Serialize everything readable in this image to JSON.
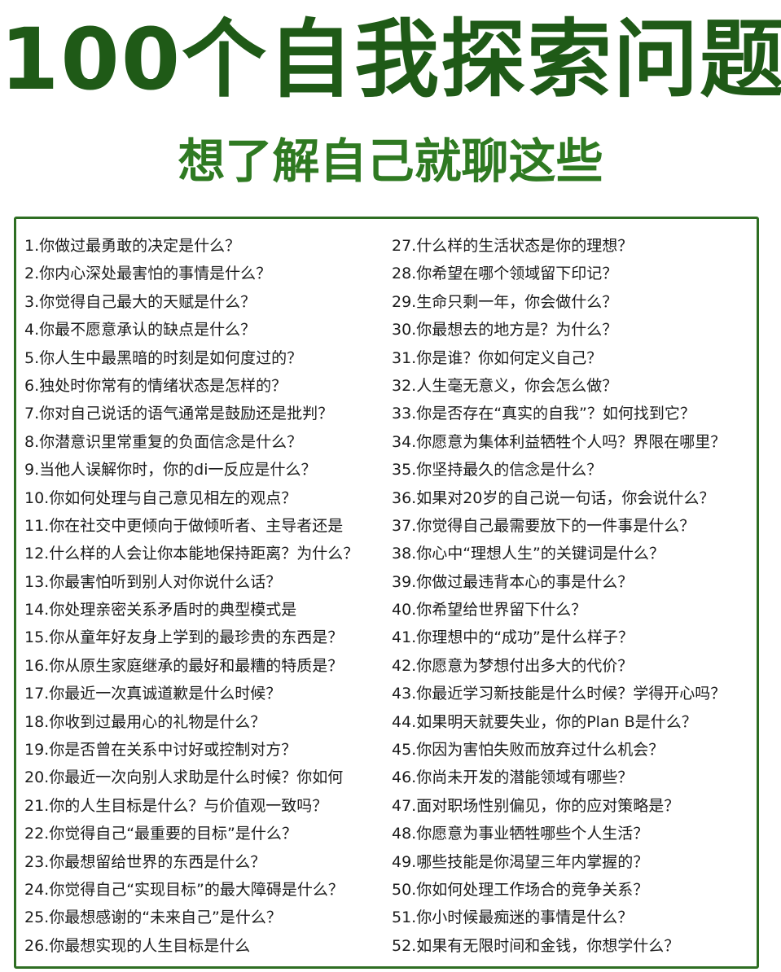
{
  "title": "100个自我探索问题",
  "subtitle": "想了解自己就聊这些",
  "questions_left": [
    "1.你做过最勇敢的决定是什么？",
    "2.你内心深处最害怕的事情是什么？",
    "3.你觉得自己最大的天赋是什么？",
    "4.你最不愿意承认的缺点是什么？",
    "5.你人生中最黑暗的时刻是如何度过的？",
    "6.独处时你常有的情绪状态是怎样的？",
    "7.你对自己说话的语气通常是鼓励还是批判？",
    "8.你潜意识里常重复的负面信念是什么？",
    "9.当他人误解你时，你的di一反应是什么？",
    "10.你如何处理与自己意见相左的观点？",
    "11.你在社交中更倾向于做倾听者、主导者还是",
    "12.什么样的人会让你本能地保持距离？为什么？",
    "13.你最害怕听到别人对你说什么话？",
    "14.你处理亲密关系矛盾时的典型模式是",
    "15.你从童年好友身上学到的最珍贵的东西是？",
    "16.你从原生家庭继承的最好和最糟的特质是？",
    "17.你最近一次真诚道歉是什么时候？",
    "18.你收到过最用心的礼物是什么？",
    "19.你是否曾在关系中讨好或控制对方？",
    "20.你最近一次向别人求助是什么时候？你如何",
    "21.你的人生目标是什么？与价值观一致吗？",
    "22.你觉得自己“最重要的目标”是什么？",
    "23.你最想留给世界的东西是什么？",
    "24.你觉得自己“实现目标”的最大障碍是什么？",
    "25.你最想感谢的“未来自己”是什么？",
    "26.你最想实现的人生目标是什么"
  ],
  "questions_right": [
    "27.什么样的生活状态是你的理想？",
    "28.你希望在哪个领域留下印记？",
    "29.生命只剩一年，你会做什么？",
    "30.你最想去的地方是？为什么？",
    "31.你是谁？你如何定义自己？",
    "32.人生毫无意义，你会怎么做？",
    "33.你是否存在“真实的自我”？如何找到它？",
    "34.你愿意为集体利益牺牲个人吗？界限在哪里？",
    "35.你坚持最久的信念是什么？",
    "36.如果对20岁的自己说一句话，你会说什么？",
    "37.你觉得自己最需要放下的一件事是什么？",
    "38.你心中“理想人生”的关键词是什么？",
    "39.你做过最违背本心的事是什么？",
    "40.你希望给世界留下什么？",
    "41.你理想中的“成功”是什么样子？",
    "42.你愿意为梦想付出多大的代价？",
    "43.你最近学习新技能是什么时候？学得开心吗？",
    "44.如果明天就要失业，你的Plan B是什么？",
    "45.你因为害怕失败而放弃过什么机会？",
    "46.你尚未开发的潜能领域有哪些？",
    "47.面对职场性别偏见，你的应对策略是？",
    "48.你愿意为事业牺牲哪些个人生活？",
    "49.哪些技能是你渴望三年内掌握的？",
    "50.你如何处理工作场合的竞争关系？",
    "51.你小时候最痴迷的事情是什么？",
    "52.如果有无限时间和金钱，你想学什么？"
  ]
}
